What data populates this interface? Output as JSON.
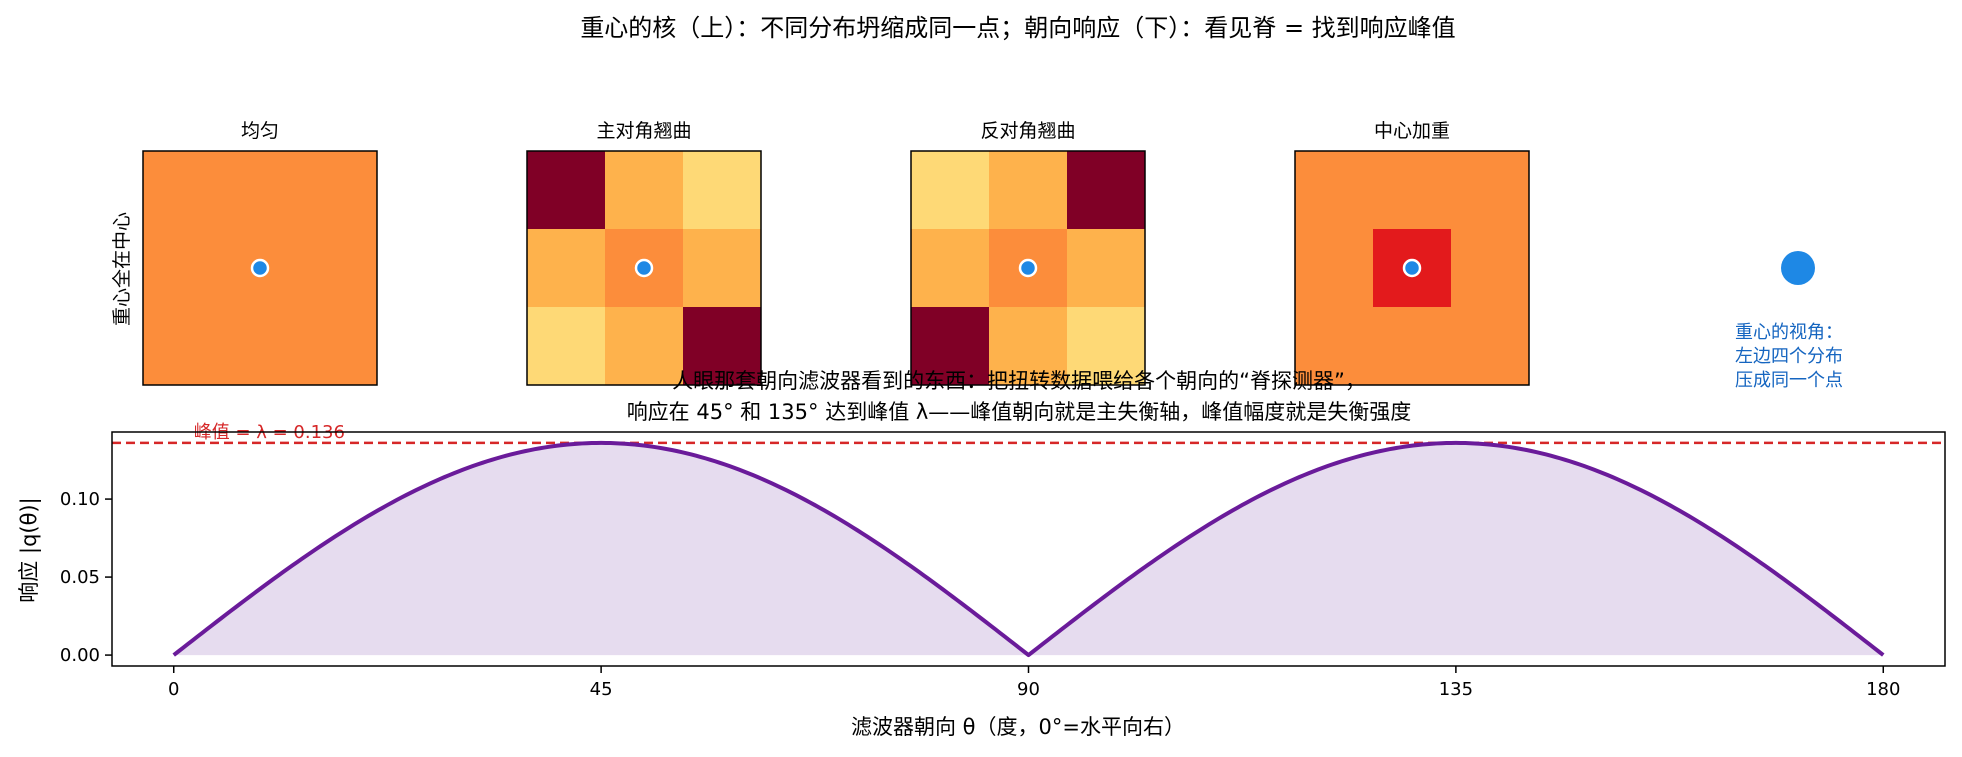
{
  "suptitle": "重心的核（上）：不同分布坍缩成同一点；朝向响应（下）：看见脊 = 找到响应峰值",
  "top_row": {
    "ylabel": "重心全在中心",
    "panels": [
      {
        "title": "均匀",
        "grid": [
          [
            "#fc8d3b",
            "#fc8d3b",
            "#fc8d3b"
          ],
          [
            "#fc8d3b",
            "#fc8d3b",
            "#fc8d3b"
          ],
          [
            "#fc8d3b",
            "#fc8d3b",
            "#fc8d3b"
          ]
        ]
      },
      {
        "title": "主对角翘曲",
        "grid": [
          [
            "#800026",
            "#feb24c",
            "#fed976"
          ],
          [
            "#feb24c",
            "#fc8d3b",
            "#feb24c"
          ],
          [
            "#fed976",
            "#feb24c",
            "#800026"
          ]
        ]
      },
      {
        "title": "反对角翘曲",
        "grid": [
          [
            "#fed976",
            "#feb24c",
            "#800026"
          ],
          [
            "#feb24c",
            "#fc8d3b",
            "#feb24c"
          ],
          [
            "#800026",
            "#feb24c",
            "#fed976"
          ]
        ]
      },
      {
        "title": "中心加重",
        "grid": [
          [
            "#fc8d3b",
            "#fc8d3b",
            "#fc8d3b"
          ],
          [
            "#fc8d3b",
            "#e31a1c",
            "#fc8d3b"
          ],
          [
            "#fc8d3b",
            "#fc8d3b",
            "#fc8d3b"
          ]
        ]
      }
    ],
    "centroid_color": "#1e88e5",
    "collapse_note": [
      "重心的视角：",
      "左边四个分布",
      "压成同一个点"
    ]
  },
  "chart_data": {
    "type": "area",
    "title_lines": [
      "人眼那套朝向滤波器看到的东西：把扭转数据喂给各个朝向的“脊探测器”，",
      "响应在 45° 和 135° 达到峰值 λ——峰值朝向就是主失衡轴，峰值幅度就是失衡强度"
    ],
    "xlabel": "滤波器朝向 θ（度，0°=水平向右）",
    "ylabel": "响应 |q(θ)|",
    "xlim": [
      -6.5,
      186.5
    ],
    "ylim": [
      -0.007,
      0.143
    ],
    "xticks": [
      0,
      45,
      90,
      135,
      180
    ],
    "yticks": [
      0.0,
      0.05,
      0.1
    ],
    "ytick_labels": [
      "0.00",
      "0.05",
      "0.10"
    ],
    "series": [
      {
        "formula": "|λ·sin(2θ)|",
        "amplitude": 0.136,
        "x_range": [
          0,
          180
        ],
        "color": "#6a1b9a",
        "fill": "#e6dcef"
      }
    ],
    "peak_line": {
      "value": 0.136,
      "label": "峰值 = λ = 0.136",
      "color": "#d62728"
    }
  }
}
